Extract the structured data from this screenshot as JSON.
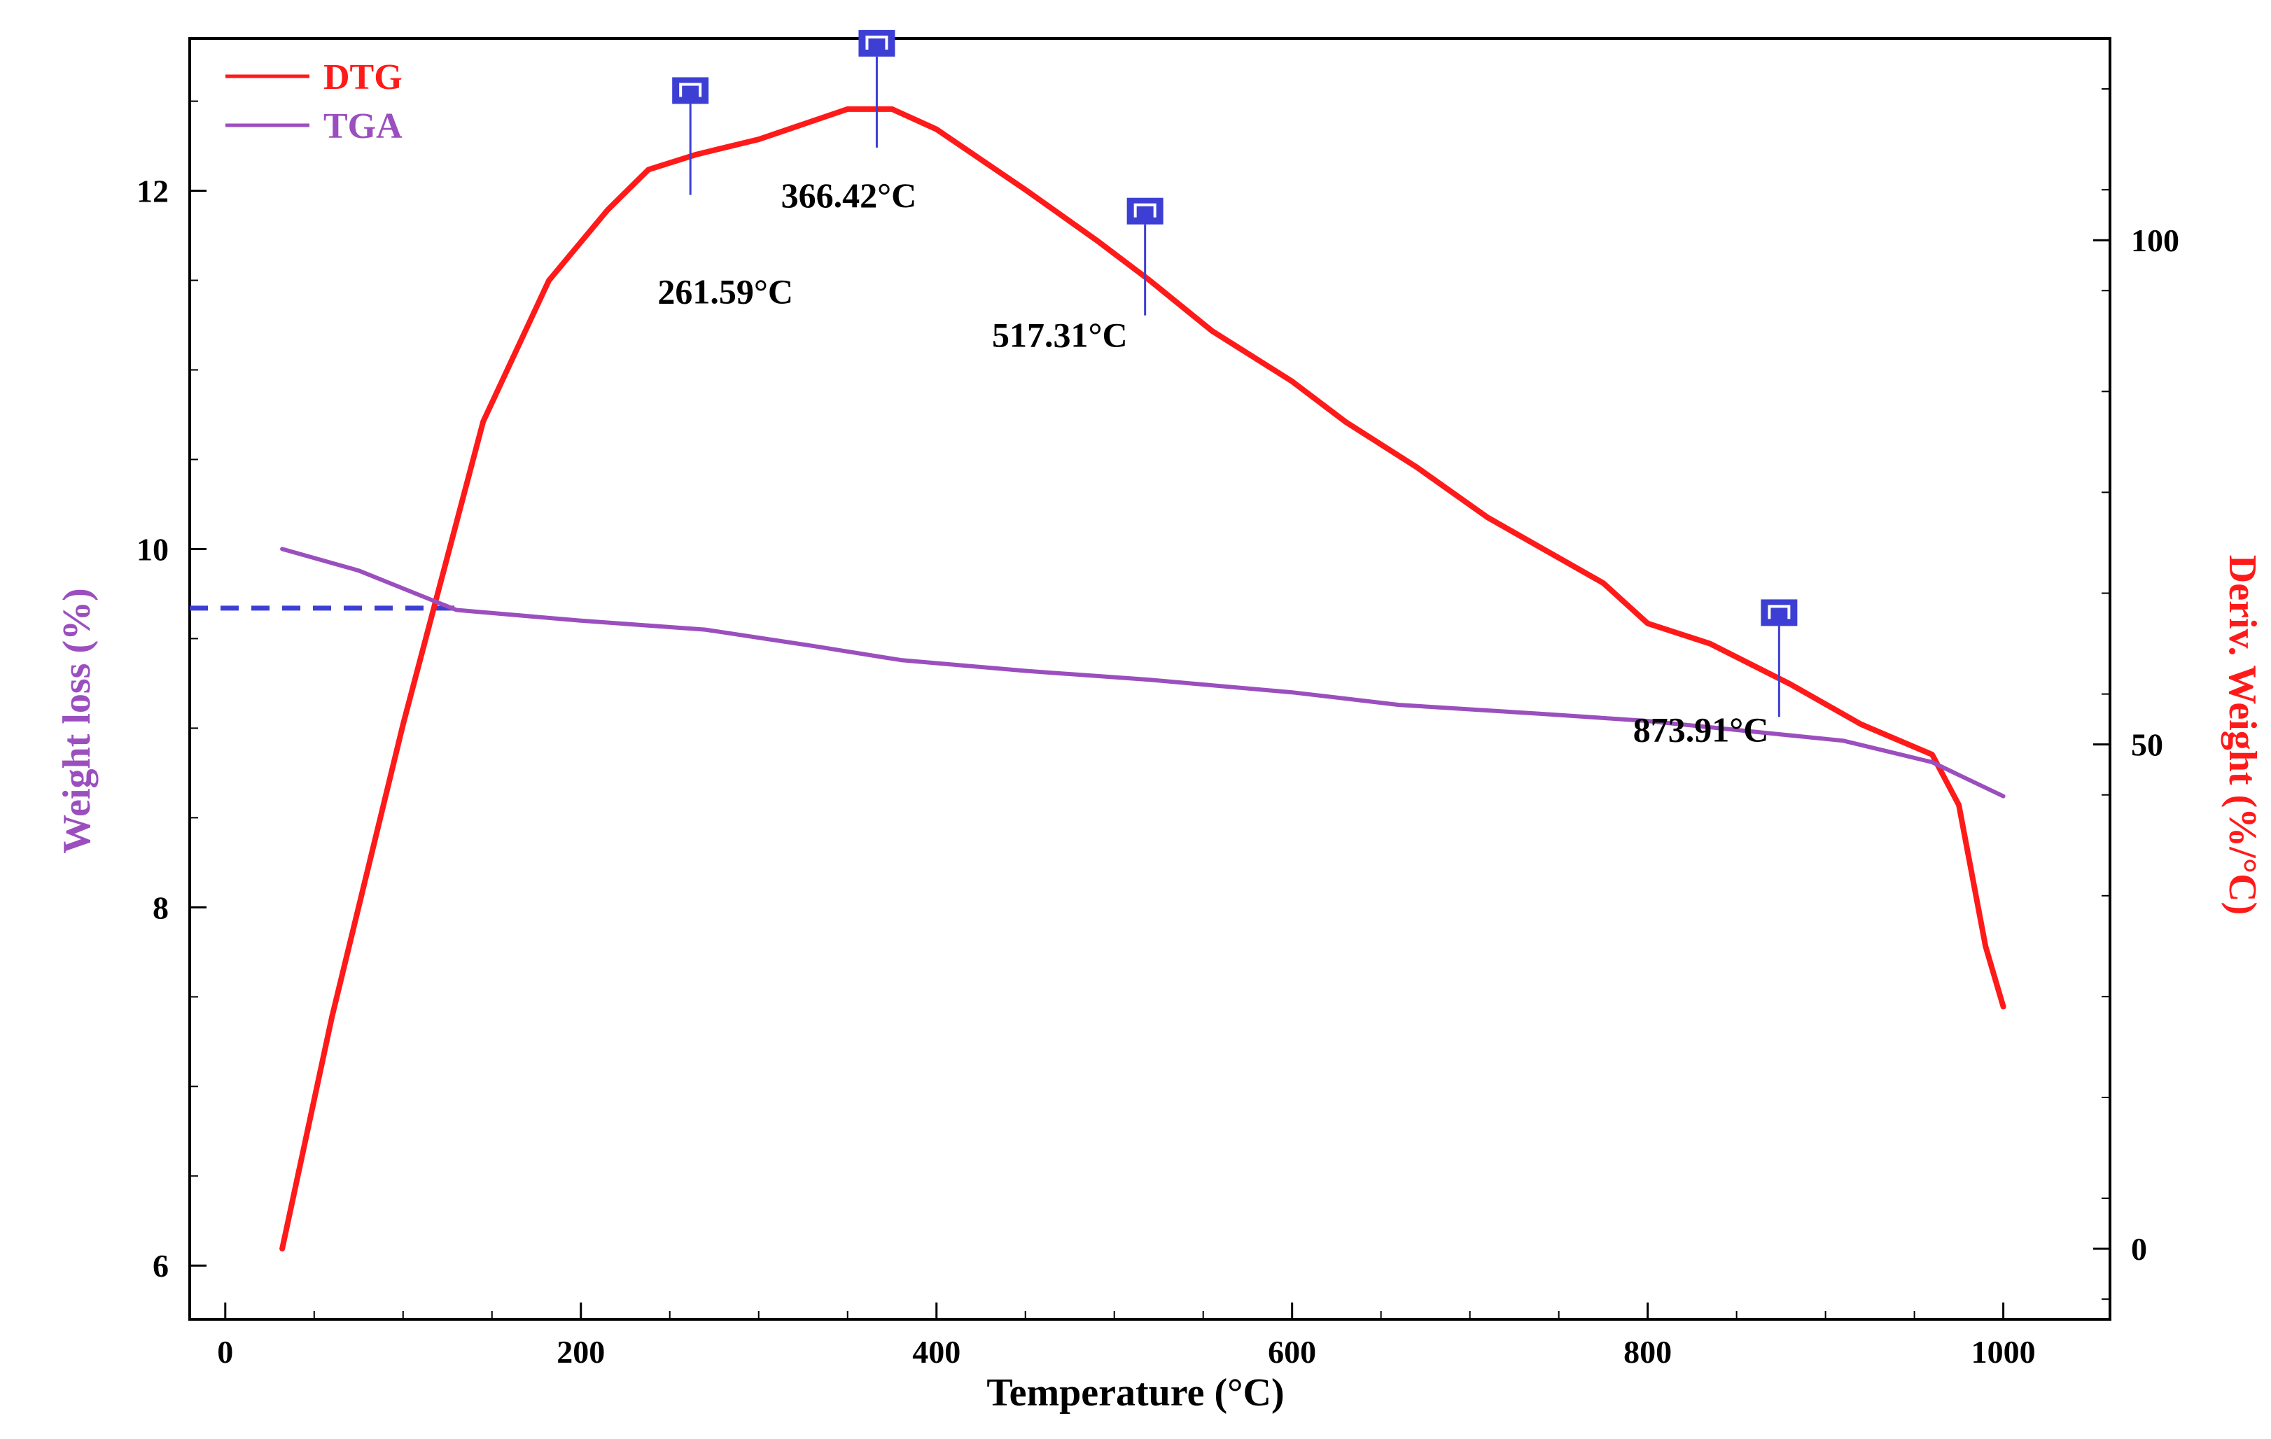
{
  "chart_data": {
    "type": "line",
    "title": "",
    "xlabel": "Temperature (°C)",
    "ylabel_left": "Weight loss (%)",
    "ylabel_right": "Deriv. Weight (%/°C)",
    "xlim": [
      -20,
      1060
    ],
    "ylim_left": [
      5.7,
      12.85
    ],
    "ylim_right": [
      -7,
      120
    ],
    "x_ticks": [
      "0",
      "200",
      "400",
      "600",
      "800",
      "1000"
    ],
    "y_left_ticks": [
      "6",
      "8",
      "10",
      "12"
    ],
    "y_right_ticks": [
      "0",
      "50",
      "100"
    ],
    "legend_position": "top-left",
    "colors": {
      "dtg": "#ff1a1a",
      "tga": "#9b4fbf",
      "marker": "#3d3fd4",
      "axis": "#000000"
    },
    "series": [
      {
        "name": "DTG",
        "axis": "right",
        "x": [
          32,
          60,
          100,
          145,
          182,
          215,
          238,
          265,
          300,
          350,
          375,
          400,
          450,
          490,
          520,
          555,
          600,
          630,
          670,
          710,
          775,
          800,
          835,
          880,
          920,
          960,
          975,
          990,
          1000
        ],
        "values": [
          0,
          23,
          52,
          82,
          96,
          103,
          107,
          108.5,
          110,
          113,
          113,
          111,
          105,
          100,
          96,
          91,
          86,
          82,
          77.5,
          72.5,
          66,
          62,
          60,
          56,
          52,
          49,
          44,
          30,
          24
        ]
      },
      {
        "name": "TGA",
        "axis": "left",
        "x": [
          32,
          75,
          130,
          200,
          270,
          330,
          380,
          450,
          520,
          600,
          660,
          740,
          800,
          860,
          910,
          960,
          1000
        ],
        "values": [
          10.0,
          9.88,
          9.66,
          9.6,
          9.55,
          9.46,
          9.38,
          9.32,
          9.27,
          9.2,
          9.13,
          9.08,
          9.04,
          8.98,
          8.93,
          8.81,
          8.62
        ]
      }
    ],
    "reference_line": {
      "axis": "left",
      "y": 9.67,
      "x_from": -20,
      "x_to": 130,
      "style": "dashed"
    },
    "annotations": [
      {
        "label": "261.59°C",
        "x": 261.59
      },
      {
        "label": "366.42°C",
        "x": 366.42
      },
      {
        "label": "517.31°C",
        "x": 517.31
      },
      {
        "label": "873.91°C",
        "x": 873.91
      }
    ]
  }
}
